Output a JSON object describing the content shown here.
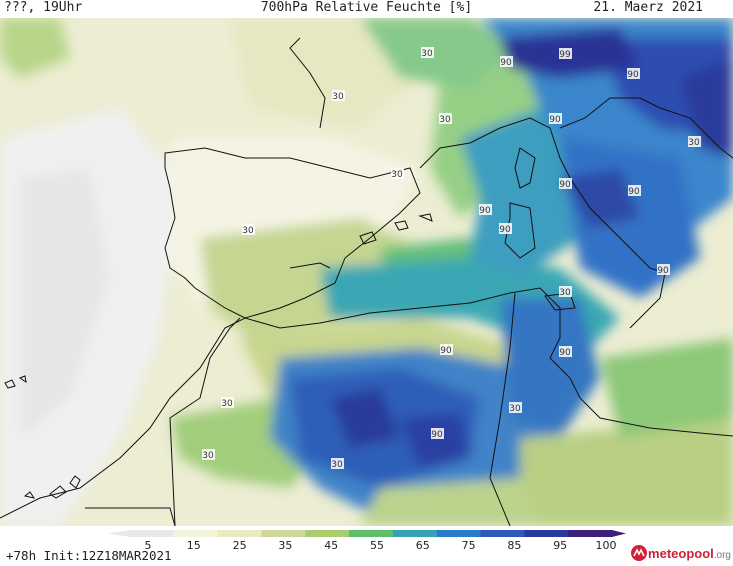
{
  "header": {
    "left": "???, 19Uhr",
    "title": "700hPa Relative Feuchte [%]",
    "date": "21. Maerz 2021"
  },
  "footer": {
    "run_info": "+78h Init:12Z18MAR2021",
    "logo_main": "meteopool",
    "logo_suffix": ".org"
  },
  "colorbar": {
    "ticks": [
      "5",
      "15",
      "25",
      "35",
      "45",
      "55",
      "65",
      "75",
      "85",
      "95",
      "100"
    ],
    "colors": [
      "#e8e8e8",
      "#f4f4dc",
      "#e9ebbe",
      "#d1d79c",
      "#a9cc6d",
      "#5fbf6b",
      "#35a4b0",
      "#2a7bc8",
      "#2f58b8",
      "#2a3a9c",
      "#3b1f7a"
    ]
  },
  "contour_labels": [
    "30",
    "90",
    "99",
    "90",
    "30",
    "30",
    "90",
    "30",
    "90",
    "90",
    "30",
    "90",
    "90",
    "30",
    "90",
    "30",
    "90",
    "90",
    "30",
    "30",
    "90",
    "30",
    "30"
  ]
}
